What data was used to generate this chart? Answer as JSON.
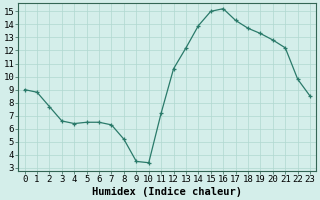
{
  "x": [
    0,
    1,
    2,
    3,
    4,
    5,
    6,
    7,
    8,
    9,
    10,
    11,
    12,
    13,
    14,
    15,
    16,
    17,
    18,
    19,
    20,
    21,
    22,
    23
  ],
  "y": [
    9.0,
    8.8,
    7.7,
    6.6,
    6.4,
    6.5,
    6.5,
    6.3,
    5.2,
    3.5,
    3.4,
    7.2,
    10.6,
    12.2,
    13.9,
    15.0,
    15.2,
    14.3,
    13.7,
    13.3,
    12.8,
    12.2,
    9.8,
    8.5
  ],
  "xlabel": "Humidex (Indice chaleur)",
  "ylim": [
    2.8,
    15.6
  ],
  "xlim": [
    -0.5,
    23.5
  ],
  "yticks": [
    3,
    4,
    5,
    6,
    7,
    8,
    9,
    10,
    11,
    12,
    13,
    14,
    15
  ],
  "xticks": [
    0,
    1,
    2,
    3,
    4,
    5,
    6,
    7,
    8,
    9,
    10,
    11,
    12,
    13,
    14,
    15,
    16,
    17,
    18,
    19,
    20,
    21,
    22,
    23
  ],
  "line_color": "#2a7a6a",
  "bg_color": "#d4eeea",
  "grid_color": "#b0d8d0",
  "tick_label_fontsize": 6.5,
  "xlabel_fontsize": 7.5
}
